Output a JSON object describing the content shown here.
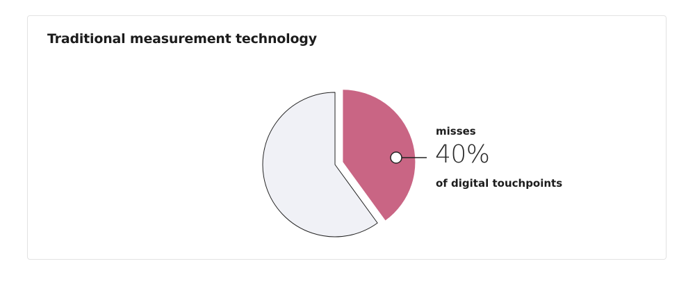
{
  "card": {
    "title": "Traditional measurement technology"
  },
  "chart_data": {
    "type": "pie",
    "title": "Traditional measurement technology",
    "slices": [
      {
        "value": 40,
        "color": "#c96584",
        "exploded": true
      },
      {
        "value": 60,
        "color": "#f0f1f6",
        "exploded": false
      }
    ],
    "annotation": {
      "top_text": "misses",
      "value_text": "40%",
      "bottom_text": "of digital touchpoints"
    },
    "colors": {
      "highlight": "#c96584",
      "rest": "#f0f1f6",
      "stroke": "#222222"
    }
  }
}
